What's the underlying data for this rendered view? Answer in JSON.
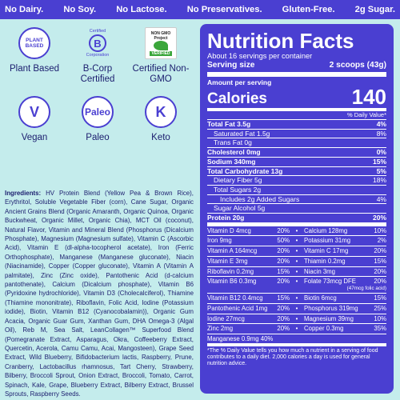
{
  "topbar": [
    "No Dairy.",
    "No Soy.",
    "No Lactose.",
    "No Preservatives.",
    "Gluten-Free.",
    "2g Sugar."
  ],
  "badges": {
    "plant_based_text": "PLANT BASED",
    "plant_based_label": "Plant Based",
    "bcorp_top": "Certified",
    "bcorp_letter": "B",
    "bcorp_bottom": "Corporation",
    "bcorp_label": "B-Corp Certified",
    "nongmo_text": "NON GMO Project",
    "nongmo_verified": "VERIFIED",
    "nongmo_label": "Certified Non-GMO",
    "vegan_letter": "V",
    "vegan_label": "Vegan",
    "paleo_circle": "Paleo",
    "paleo_label": "Paleo",
    "keto_letter": "K",
    "keto_label": "Keto"
  },
  "ingredients": {
    "heading": "Ingredients:",
    "text": "HV Protein Blend (Yellow Pea & Brown Rice), Erythritol, Soluble Vegetable Fiber (corn), Cane Sugar, Organic Ancient Grains Blend (Organic Amaranth, Organic Quinoa, Organic Buckwheat, Organic Millet, Organic Chia), MCT Oil (coconut), Natural Flavor, Vitamin and Mineral Blend (Phosphorus (Dicalcium Phosphate), Magnesium (Magnesium sulfate), Vitamin C (Ascorbic Acid), Vitamin E (dl-alpha-tocopherol acetate), Iron (Ferric Orthophosphate), Manganese (Manganese gluconate), Niacin (Niacinamide), Copper (Copper gluconate), Vitamin A (Vitamin A palmitate), Zinc (Zinc oxide), Pantothenic Acid (d-calcium pantothenate), Calcium (Dicalcium phosphate), Vitamin B6 (Pyridoxine hydrochloride), Vitamin D3 (Cholecalciferol), Thiamine (Thiamine mononitrate), Riboflavin, Folic Acid, Iodine (Potassium iodide), Biotin, Vitamin B12 (Cyanocobalamin)), Organic Gum Acacia, Organic Guar Gum, Xanthan Gum, DHA Omega-3 (Algal Oil), Reb M, Sea Salt, LeanCollagen™ Superfood Blend (Pomegranate Extract, Asparagus, Okra, Coffeeberry Extract, Quercetin, Acerola, Camu Camu, Acai, Mangosteen), Grape Seed Extract, Wild Blueberry, Bifidobacterium lactis, Raspberry, Prune, Cranberry, Lactobacillus rhamnosus, Tart Cherry, Strawberry, Bilberry, Broccoli Sprout, Onion Extract, Broccoli, Tomato, Carrot, Spinach, Kale, Grape, Blueberry Extract, Bilberry Extract, Brussel Sprouts, Raspberry Seeds."
  },
  "nutrition": {
    "title": "Nutrition Facts",
    "servings": "About 16 servings per container",
    "serving_size_label": "Serving size",
    "serving_size_value": "2 scoops (43g)",
    "amount_per_serving": "Amount per serving",
    "calories_label": "Calories",
    "calories_value": "140",
    "dv_header": "% Daily Value*",
    "rows": [
      {
        "label": "Total Fat 3.5g",
        "pct": "4%",
        "bold": true,
        "indent": 0
      },
      {
        "label": "Saturated Fat 1.5g",
        "pct": "8%",
        "bold": false,
        "indent": 1
      },
      {
        "label": "Trans Fat 0g",
        "pct": "",
        "bold": false,
        "indent": 1
      },
      {
        "label": "Cholesterol 0mg",
        "pct": "0%",
        "bold": true,
        "indent": 0
      },
      {
        "label": "Sodium 340mg",
        "pct": "15%",
        "bold": true,
        "indent": 0
      },
      {
        "label": "Total Carbohydrate 13g",
        "pct": "5%",
        "bold": true,
        "indent": 0
      },
      {
        "label": "Dietary Fiber 5g",
        "pct": "18%",
        "bold": false,
        "indent": 1
      },
      {
        "label": "Total Sugars 2g",
        "pct": "",
        "bold": false,
        "indent": 1
      },
      {
        "label": "Includes 2g Added Sugars",
        "pct": "4%",
        "bold": false,
        "indent": 2
      },
      {
        "label": "Sugar Alcohol 5g",
        "pct": "",
        "bold": false,
        "indent": 1
      }
    ],
    "protein_label": "Protein 20g",
    "protein_pct": "20%",
    "vitamins": [
      {
        "l": "Vitamin D 4mcg 20%",
        "r": "Calcium 128mg 10%"
      },
      {
        "l": "Iron 9mg 50%",
        "r": "Potassium 31mg 2%"
      },
      {
        "l": "Vitamin A 164mcg 20%",
        "r": "Vitamin C 17mg 20%"
      },
      {
        "l": "Vitamin E 3mg 20%",
        "r": "Thiamin 0.2mg 15%"
      },
      {
        "l": "Riboflavin 0.2mg 15%",
        "r": "Niacin 3mg 20%"
      },
      {
        "l": "Vitamin B6 0.3mg 20%",
        "r": "Folate 73mcg DFE 20%",
        "sub": "(47mcg folic acid)"
      },
      {
        "l": "Vitamin B12 0.4mcg 15%",
        "r": "Biotin 6mcg 15%"
      },
      {
        "l": "Pantothenic Acid 1mg 20%",
        "r": "Phosphorus 319mg 25%"
      },
      {
        "l": "Iodine 27mcg 20%",
        "r": "Magnesium 39mg 10%"
      },
      {
        "l": "Zinc 2mg 20%",
        "r": "Copper 0.3mg 35%"
      }
    ],
    "manganese": "Manganese 0.9mg 40%",
    "footnote": "*The % Daily Value tells you how much a nutrient in a serving of food contributes to a daily diet. 2,000 calories a day is used for general nutrition advice."
  }
}
